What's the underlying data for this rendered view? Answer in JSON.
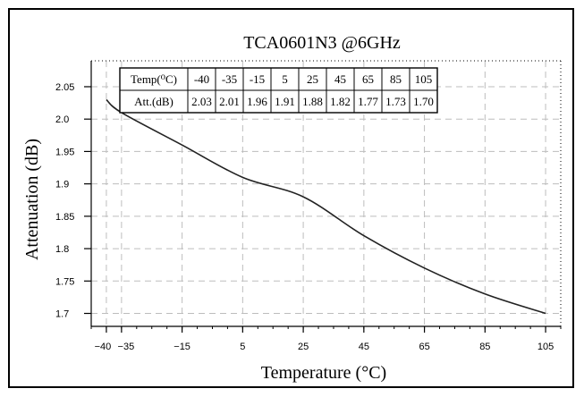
{
  "chart_data": {
    "type": "line",
    "title": "TCA0601N3 @6GHz",
    "xlabel": "Temperature (°C)",
    "ylabel": "Attenuation (dB)",
    "xlim": [
      -45,
      110
    ],
    "ylim": [
      1.68,
      2.09
    ],
    "x_ticks": [
      -40,
      -35,
      -15,
      5,
      25,
      45,
      65,
      85,
      105
    ],
    "x_tick_labels": [
      "−40",
      "−35",
      "−15",
      "5",
      "25",
      "45",
      "65",
      "85",
      "105"
    ],
    "y_ticks": [
      1.7,
      1.75,
      1.8,
      1.85,
      1.9,
      1.95,
      2.0,
      2.05
    ],
    "y_tick_labels": [
      "1.7",
      "1.75",
      "1.8",
      "1.85",
      "1.9",
      "1.95",
      "2.0",
      "2.05"
    ],
    "grid": true,
    "series": [
      {
        "x": [
          -40,
          -35,
          -15,
          5,
          25,
          45,
          65,
          85,
          105
        ],
        "values": [
          2.03,
          2.01,
          1.96,
          1.91,
          1.88,
          1.82,
          1.77,
          1.73,
          1.7
        ]
      }
    ],
    "table": {
      "row_headers": [
        "Temp(⁰C)",
        "Att.(dB)"
      ],
      "temps": [
        "-40",
        "-35",
        "-15",
        "5",
        "25",
        "45",
        "65",
        "85",
        "105"
      ],
      "atts": [
        "2.03",
        "2.01",
        "1.96",
        "1.91",
        "1.88",
        "1.82",
        "1.77",
        "1.73",
        "1.70"
      ]
    }
  },
  "colors": {
    "line": "#222222",
    "grid": "#bdbdbd",
    "axis": "#000000",
    "background": "#ffffff"
  }
}
